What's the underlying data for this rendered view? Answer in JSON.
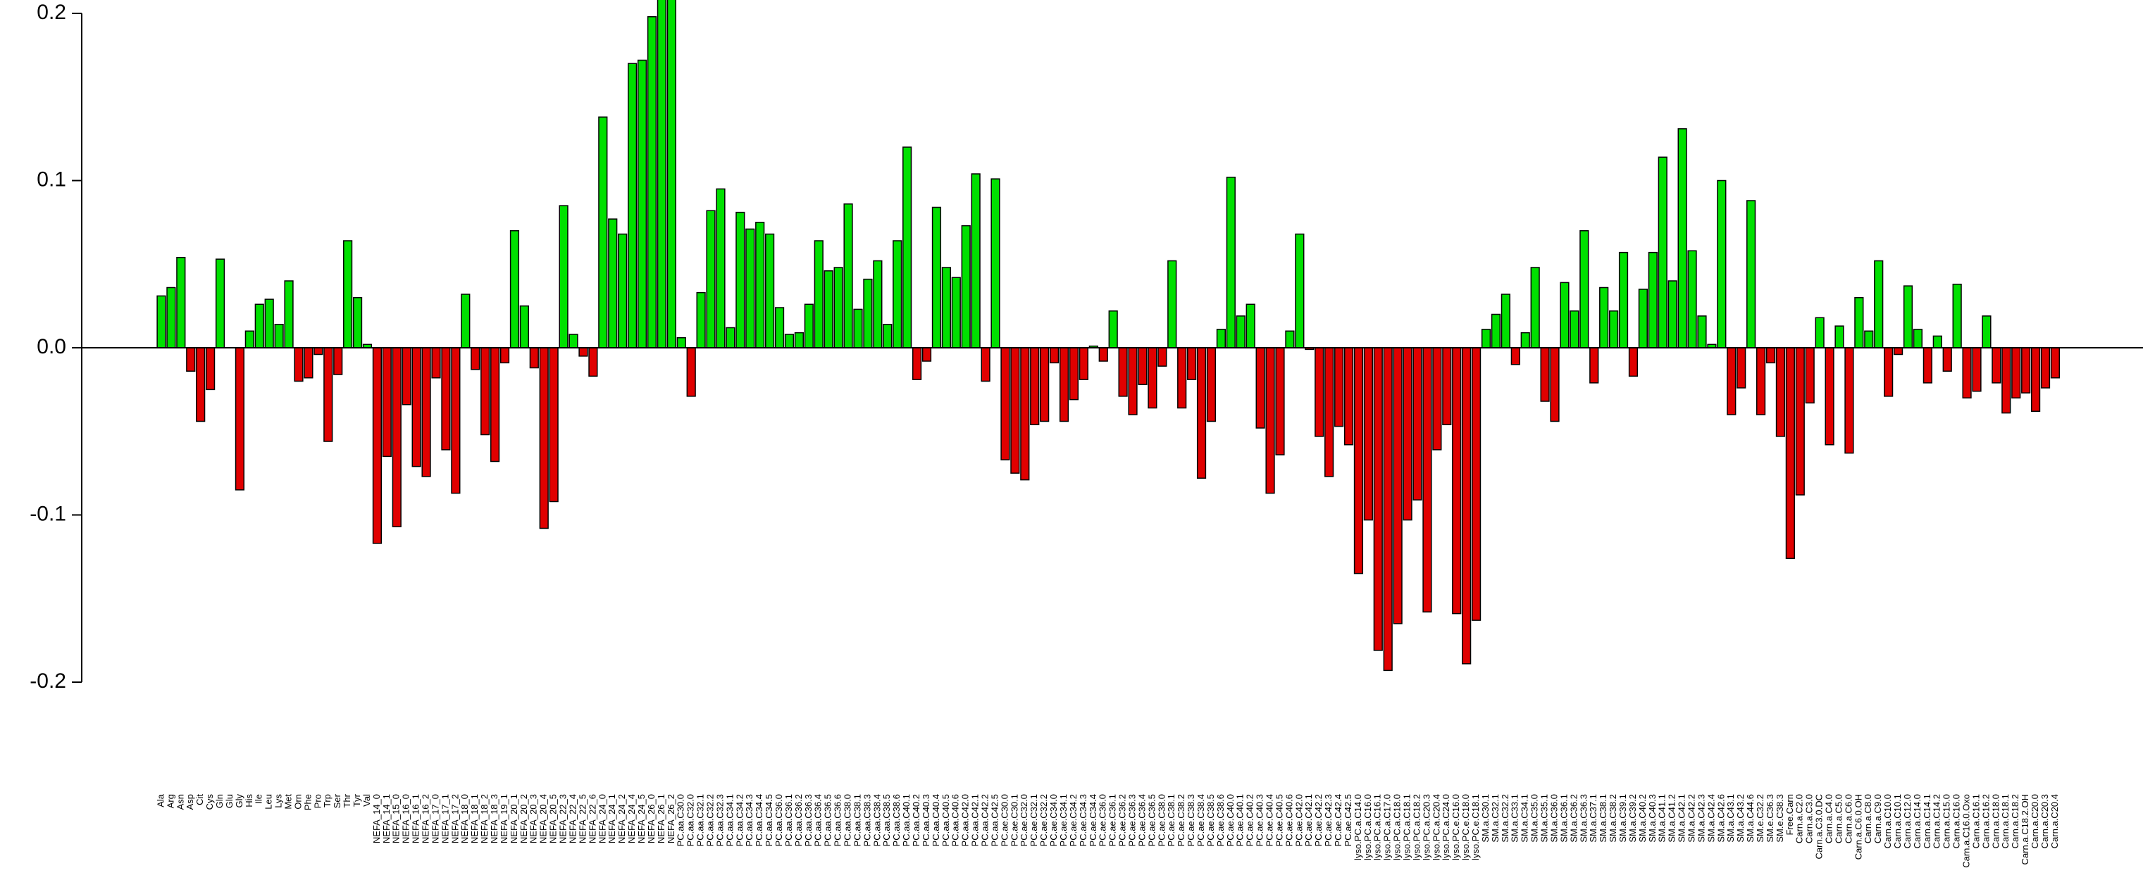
{
  "chart_data": {
    "type": "bar",
    "categories": [
      "Ala",
      "Arg",
      "Asn",
      "Asp",
      "Cit",
      "Cys",
      "Gln",
      "Glu",
      "Gly",
      "His",
      "Ile",
      "Leu",
      "Lys",
      "Met",
      "Orn",
      "Phe",
      "Pro",
      "Trp",
      "Ser",
      "Thr",
      "Tyr",
      "Val",
      "NEFA_14_0",
      "NEFA_14_1",
      "NEFA_15_0",
      "NEFA_16_0",
      "NEFA_16_1",
      "NEFA_16_2",
      "NEFA_17_0",
      "NEFA_17_1",
      "NEFA_17_2",
      "NEFA_18_0",
      "NEFA_18_1",
      "NEFA_18_2",
      "NEFA_18_3",
      "NEFA_19_1",
      "NEFA_20_1",
      "NEFA_20_2",
      "NEFA_20_3",
      "NEFA_20_4",
      "NEFA_20_5",
      "NEFA_22_3",
      "NEFA_22_4",
      "NEFA_22_5",
      "NEFA_22_6",
      "NEFA_24_0",
      "NEFA_24_1",
      "NEFA_24_2",
      "NEFA_24_4",
      "NEFA_24_5",
      "NEFA_26_0",
      "NEFA_26_1",
      "NEFA_26_2",
      "PC.aa.C30.0",
      "PC.aa.C32.0",
      "PC.aa.C32.1",
      "PC.aa.C32.2",
      "PC.aa.C32.3",
      "PC.aa.C34.1",
      "PC.aa.C34.2",
      "PC.aa.C34.3",
      "PC.aa.C34.4",
      "PC.aa.C34.5",
      "PC.aa.C36.0",
      "PC.aa.C36.1",
      "PC.aa.C36.2",
      "PC.aa.C36.3",
      "PC.aa.C36.4",
      "PC.aa.C36.5",
      "PC.aa.C36.6",
      "PC.aa.C38.0",
      "PC.aa.C38.1",
      "PC.aa.C38.3",
      "PC.aa.C38.4",
      "PC.aa.C38.5",
      "PC.aa.C38.6",
      "PC.aa.C40.1",
      "PC.aa.C40.2",
      "PC.aa.C40.3",
      "PC.aa.C40.4",
      "PC.aa.C40.5",
      "PC.aa.C40.6",
      "PC.aa.C42.0",
      "PC.aa.C42.1",
      "PC.aa.C42.2",
      "PC.aa.C42.5",
      "PC.ae.C30.0",
      "PC.ae.C30.1",
      "PC.ae.C32.0",
      "PC.ae.C32.1",
      "PC.ae.C32.2",
      "PC.ae.C34.0",
      "PC.ae.C34.1",
      "PC.ae.C34.2",
      "PC.ae.C34.3",
      "PC.ae.C34.4",
      "PC.ae.C36.0",
      "PC.ae.C36.1",
      "PC.ae.C36.2",
      "PC.ae.C36.3",
      "PC.ae.C36.4",
      "PC.ae.C36.5",
      "PC.ae.C38.0",
      "PC.ae.C38.1",
      "PC.ae.C38.2",
      "PC.ae.C38.3",
      "PC.ae.C38.4",
      "PC.ae.C38.5",
      "PC.ae.C38.6",
      "PC.ae.C40.0",
      "PC.ae.C40.1",
      "PC.ae.C40.2",
      "PC.ae.C40.3",
      "PC.ae.C40.4",
      "PC.ae.C40.5",
      "PC.ae.C40.6",
      "PC.ae.C42.0",
      "PC.ae.C42.1",
      "PC.ae.C42.2",
      "PC.ae.C42.3",
      "PC.ae.C42.4",
      "PC.ae.C42.5",
      "lyso.PC.a.C14.0",
      "lyso.PC.a.C16.0",
      "lyso.PC.a.C16.1",
      "lyso.PC.a.C17.0",
      "lyso.PC.a.C18.0",
      "lyso.PC.a.C18.1",
      "lyso.PC.a.C18.2",
      "lyso.PC.a.C20.3",
      "lyso.PC.a.C20.4",
      "lyso.PC.a.C24.0",
      "lyso.PC.e.C16.0",
      "lyso.PC.e.C18.0",
      "lyso.PC.e.C18.1",
      "SM.a.C30.1",
      "SM.a.C32.1",
      "SM.a.C32.2",
      "SM.a.C33.1",
      "SM.a.C34.1",
      "SM.a.C35.0",
      "SM.a.C35.1",
      "SM.a.C36.0",
      "SM.a.C36.1",
      "SM.a.C36.2",
      "SM.a.C36.3",
      "SM.a.C37.1",
      "SM.a.C38.1",
      "SM.a.C38.2",
      "SM.a.C39.1",
      "SM.a.C39.2",
      "SM.a.C40.2",
      "SM.a.C40.3",
      "SM.a.C41.1",
      "SM.a.C41.2",
      "SM.a.C42.1",
      "SM.a.C42.2",
      "SM.a.C42.3",
      "SM.a.C42.4",
      "SM.a.C42.6",
      "SM.a.C43.1",
      "SM.a.C43.2",
      "SM.a.C44.6",
      "SM.e.C32.2",
      "SM.e.C36.3",
      "SM.e.C38.3",
      "Free.Carn",
      "Carn.a.C2.0",
      "Carn.a.C3.0",
      "Carn.a.C3.0.DC",
      "Carn.a.C4.0",
      "Carn.a.C5.0",
      "Carn.a.C6.0",
      "Carn.a.C6.0.OH",
      "Carn.a.C8.0",
      "Carn.a.C9.0",
      "Carn.a.C10.0",
      "Carn.a.C10.1",
      "Carn.a.C12.0",
      "Carn.a.C14.0",
      "Carn.a.C14.1",
      "Carn.a.C14.2",
      "Carn.a.C15.0",
      "Carn.a.C16.0",
      "Carn.a.C16.0.Oxo",
      "Carn.a.C16.1",
      "Carn.a.C16.2",
      "Carn.a.C18.0",
      "Carn.a.C18.1",
      "Carn.a.C18.2",
      "Carn.a.C18.2.OH",
      "Carn.a.C20.0",
      "Carn.a.C20.3",
      "Carn.a.C20.4"
    ],
    "values": [
      0.031,
      0.036,
      0.054,
      -0.014,
      -0.044,
      -0.025,
      0.053,
      0,
      -0.085,
      0.01,
      0.026,
      0.029,
      0.014,
      0.04,
      -0.02,
      -0.018,
      -0.004,
      -0.056,
      -0.016,
      0.064,
      0.03,
      0.002,
      -0.117,
      -0.065,
      -0.107,
      -0.034,
      -0.071,
      -0.077,
      -0.018,
      -0.061,
      -0.087,
      0.032,
      -0.013,
      -0.052,
      -0.068,
      -0.009,
      0.07,
      0.025,
      -0.012,
      -0.108,
      -0.092,
      0.085,
      0.008,
      -0.005,
      -0.017,
      0.138,
      0.077,
      0.068,
      0.17,
      0.172,
      0.198,
      0.215,
      0.22,
      0.006,
      -0.029,
      0.033,
      0.082,
      0.095,
      0.012,
      0.081,
      0.071,
      0.075,
      0.068,
      0.024,
      0.008,
      0.009,
      0.026,
      0.064,
      0.046,
      0.048,
      0.086,
      0.023,
      0.041,
      0.052,
      0.014,
      0.064,
      0.12,
      -0.019,
      -0.008,
      0.084,
      0.048,
      0.042,
      0.073,
      0.104,
      -0.02,
      0.101,
      -0.067,
      -0.075,
      -0.079,
      -0.046,
      -0.044,
      -0.009,
      -0.044,
      -0.031,
      -0.019,
      0.001,
      -0.008,
      0.022,
      -0.029,
      -0.04,
      -0.022,
      -0.036,
      -0.011,
      0.052,
      -0.036,
      -0.019,
      -0.078,
      -0.044,
      0.011,
      0.102,
      0.019,
      0.026,
      -0.048,
      -0.087,
      -0.064,
      0.01,
      0.068,
      -0.001,
      -0.053,
      -0.077,
      -0.047,
      -0.058,
      -0.135,
      -0.103,
      -0.181,
      -0.193,
      -0.165,
      -0.103,
      -0.091,
      -0.158,
      -0.061,
      -0.046,
      -0.159,
      -0.189,
      -0.163,
      0.011,
      0.02,
      0.032,
      -0.01,
      0.009,
      0.048,
      -0.032,
      -0.044,
      0.039,
      0.022,
      0.07,
      -0.021,
      0.036,
      0.022,
      0.057,
      -0.017,
      0.035,
      0.057,
      0.114,
      0.04,
      0.131,
      0.058,
      0.019,
      0.002,
      0.1,
      -0.04,
      -0.024,
      0.088,
      -0.04,
      -0.009,
      -0.053,
      -0.126,
      -0.088,
      -0.033,
      0.018,
      -0.058,
      0.013,
      -0.063,
      0.03,
      0.01,
      0.052,
      -0.029,
      -0.004,
      0.037,
      0.011,
      -0.021,
      0.007,
      -0.014,
      0.038,
      -0.03,
      -0.026,
      0.019,
      -0.021,
      -0.039,
      -0.03,
      -0.027,
      -0.038,
      -0.024,
      -0.018
    ],
    "positive_color": "#00e000",
    "negative_color": "#e00000",
    "ylim": [
      -0.2,
      0.2
    ],
    "yticks": [
      -0.2,
      -0.1,
      {
        "value": 0,
        "label": "0.0"
      },
      0.1,
      0.2
    ]
  }
}
